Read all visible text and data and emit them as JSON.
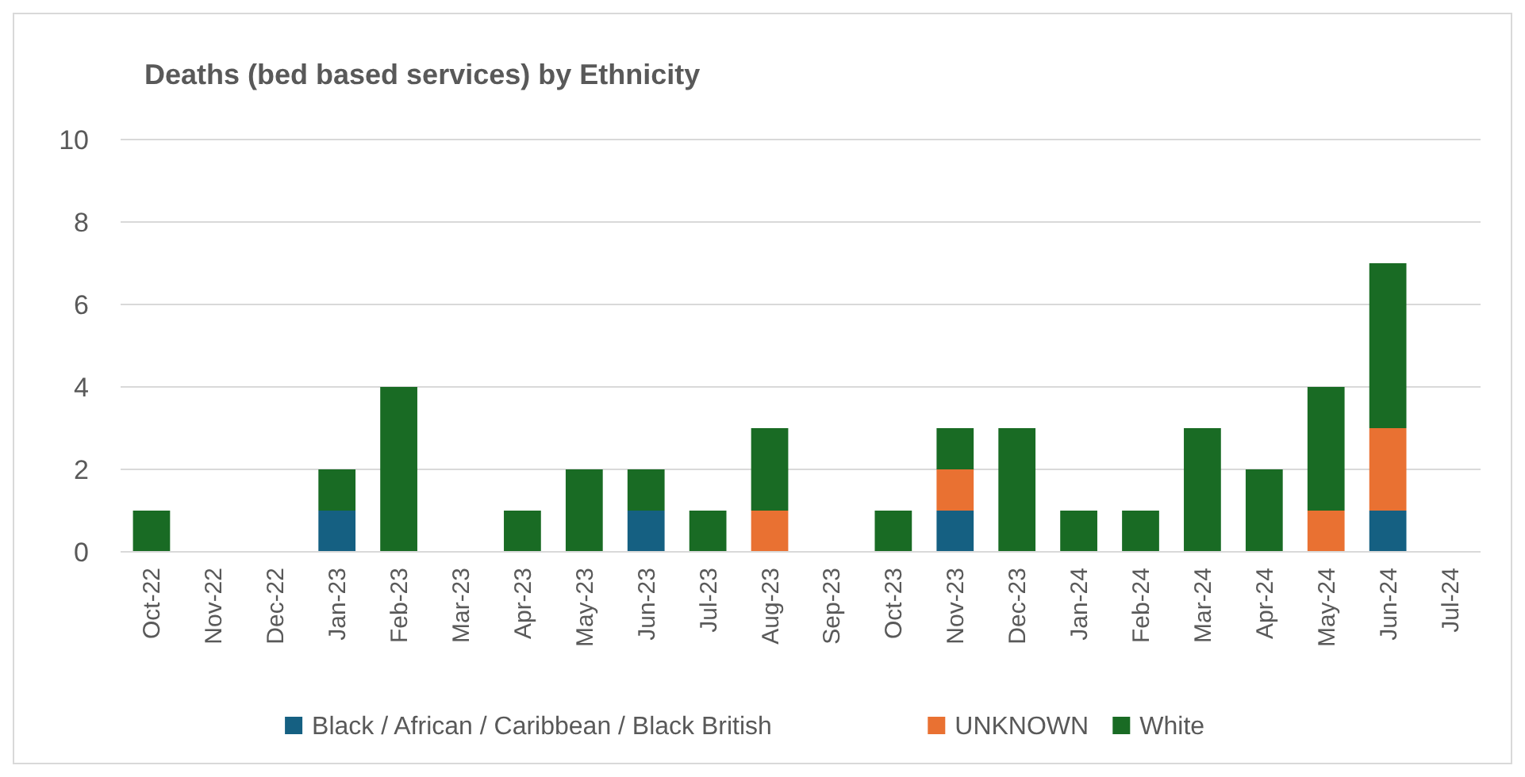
{
  "chart_data": {
    "type": "bar",
    "title": "Deaths (bed based services) by Ethnicity",
    "stacked": true,
    "categories": [
      "Oct-22",
      "Nov-22",
      "Dec-22",
      "Jan-23",
      "Feb-23",
      "Mar-23",
      "Apr-23",
      "May-23",
      "Jun-23",
      "Jul-23",
      "Aug-23",
      "Sep-23",
      "Oct-23",
      "Nov-23",
      "Dec-23",
      "Jan-24",
      "Feb-24",
      "Mar-24",
      "Apr-24",
      "May-24",
      "Jun-24",
      "Jul-24"
    ],
    "series": [
      {
        "name": "Black / African / Caribbean / Black British",
        "color": "#156082",
        "values": [
          null,
          null,
          null,
          1,
          null,
          null,
          null,
          null,
          1,
          null,
          null,
          null,
          null,
          1,
          null,
          null,
          null,
          null,
          null,
          null,
          1,
          null
        ]
      },
      {
        "name": "UNKNOWN",
        "color": "#e97132",
        "values": [
          null,
          null,
          null,
          null,
          null,
          null,
          null,
          null,
          null,
          null,
          1,
          null,
          null,
          1,
          null,
          null,
          null,
          null,
          null,
          1,
          2,
          null
        ]
      },
      {
        "name": "White",
        "color": "#196b24",
        "values": [
          1,
          null,
          null,
          1,
          4,
          null,
          1,
          2,
          1,
          1,
          2,
          null,
          1,
          1,
          3,
          1,
          1,
          3,
          2,
          3,
          4,
          null
        ]
      }
    ],
    "ylim": [
      0,
      10
    ],
    "yticks": [
      0,
      2,
      4,
      6,
      8,
      10
    ],
    "grid": "y",
    "legend": "bottom"
  }
}
